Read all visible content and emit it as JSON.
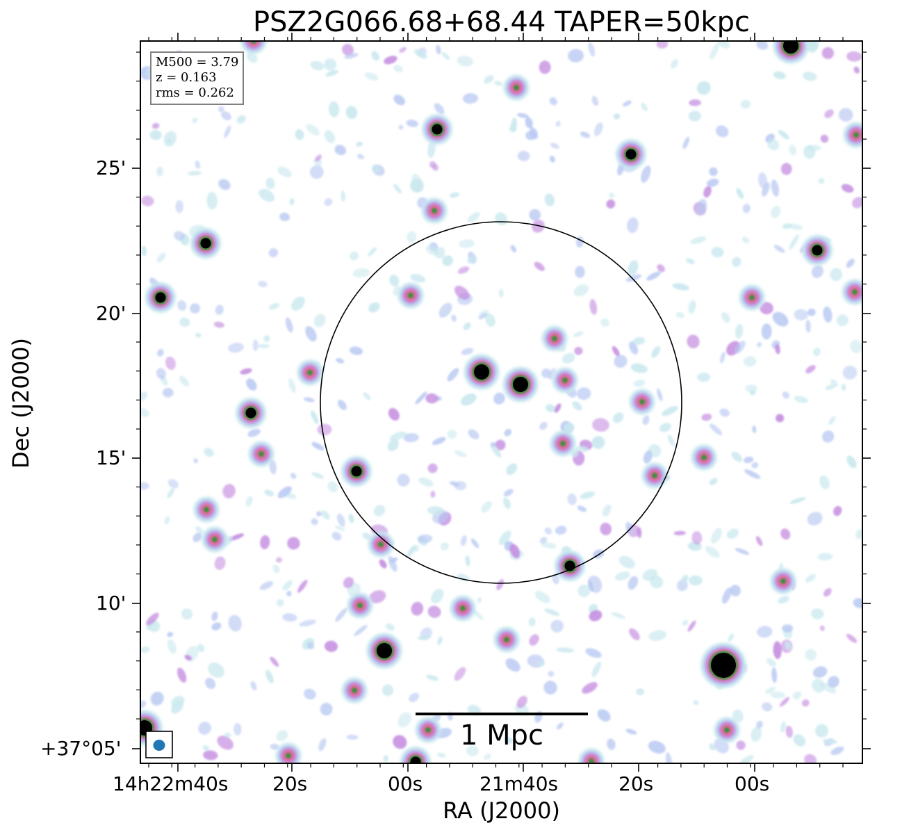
{
  "title": "PSZ2G066.68+68.44 TAPER=50kpc",
  "axes": {
    "xlabel": "RA (J2000)",
    "ylabel": "Dec (J2000)",
    "x_ticks": [
      "14h22m40s",
      "20s",
      "00s",
      "21m40s",
      "20s",
      "00s"
    ],
    "y_ticks": [
      "25'",
      "20'",
      "15'",
      "10'",
      "+37°05'"
    ]
  },
  "info": {
    "m500": "M500 = 3.79",
    "z": "z = 0.163",
    "rms": "rms = 0.262"
  },
  "scalebar": {
    "label": "1 Mpc"
  },
  "colormap": [
    "#ffffff",
    "#c9e8ee",
    "#b9c9f2",
    "#c48ce0",
    "#e06a98",
    "#3f8f3f",
    "#000000"
  ],
  "overlay": {
    "circle_color": "#000000",
    "beam_color": "#1f77b4"
  }
}
